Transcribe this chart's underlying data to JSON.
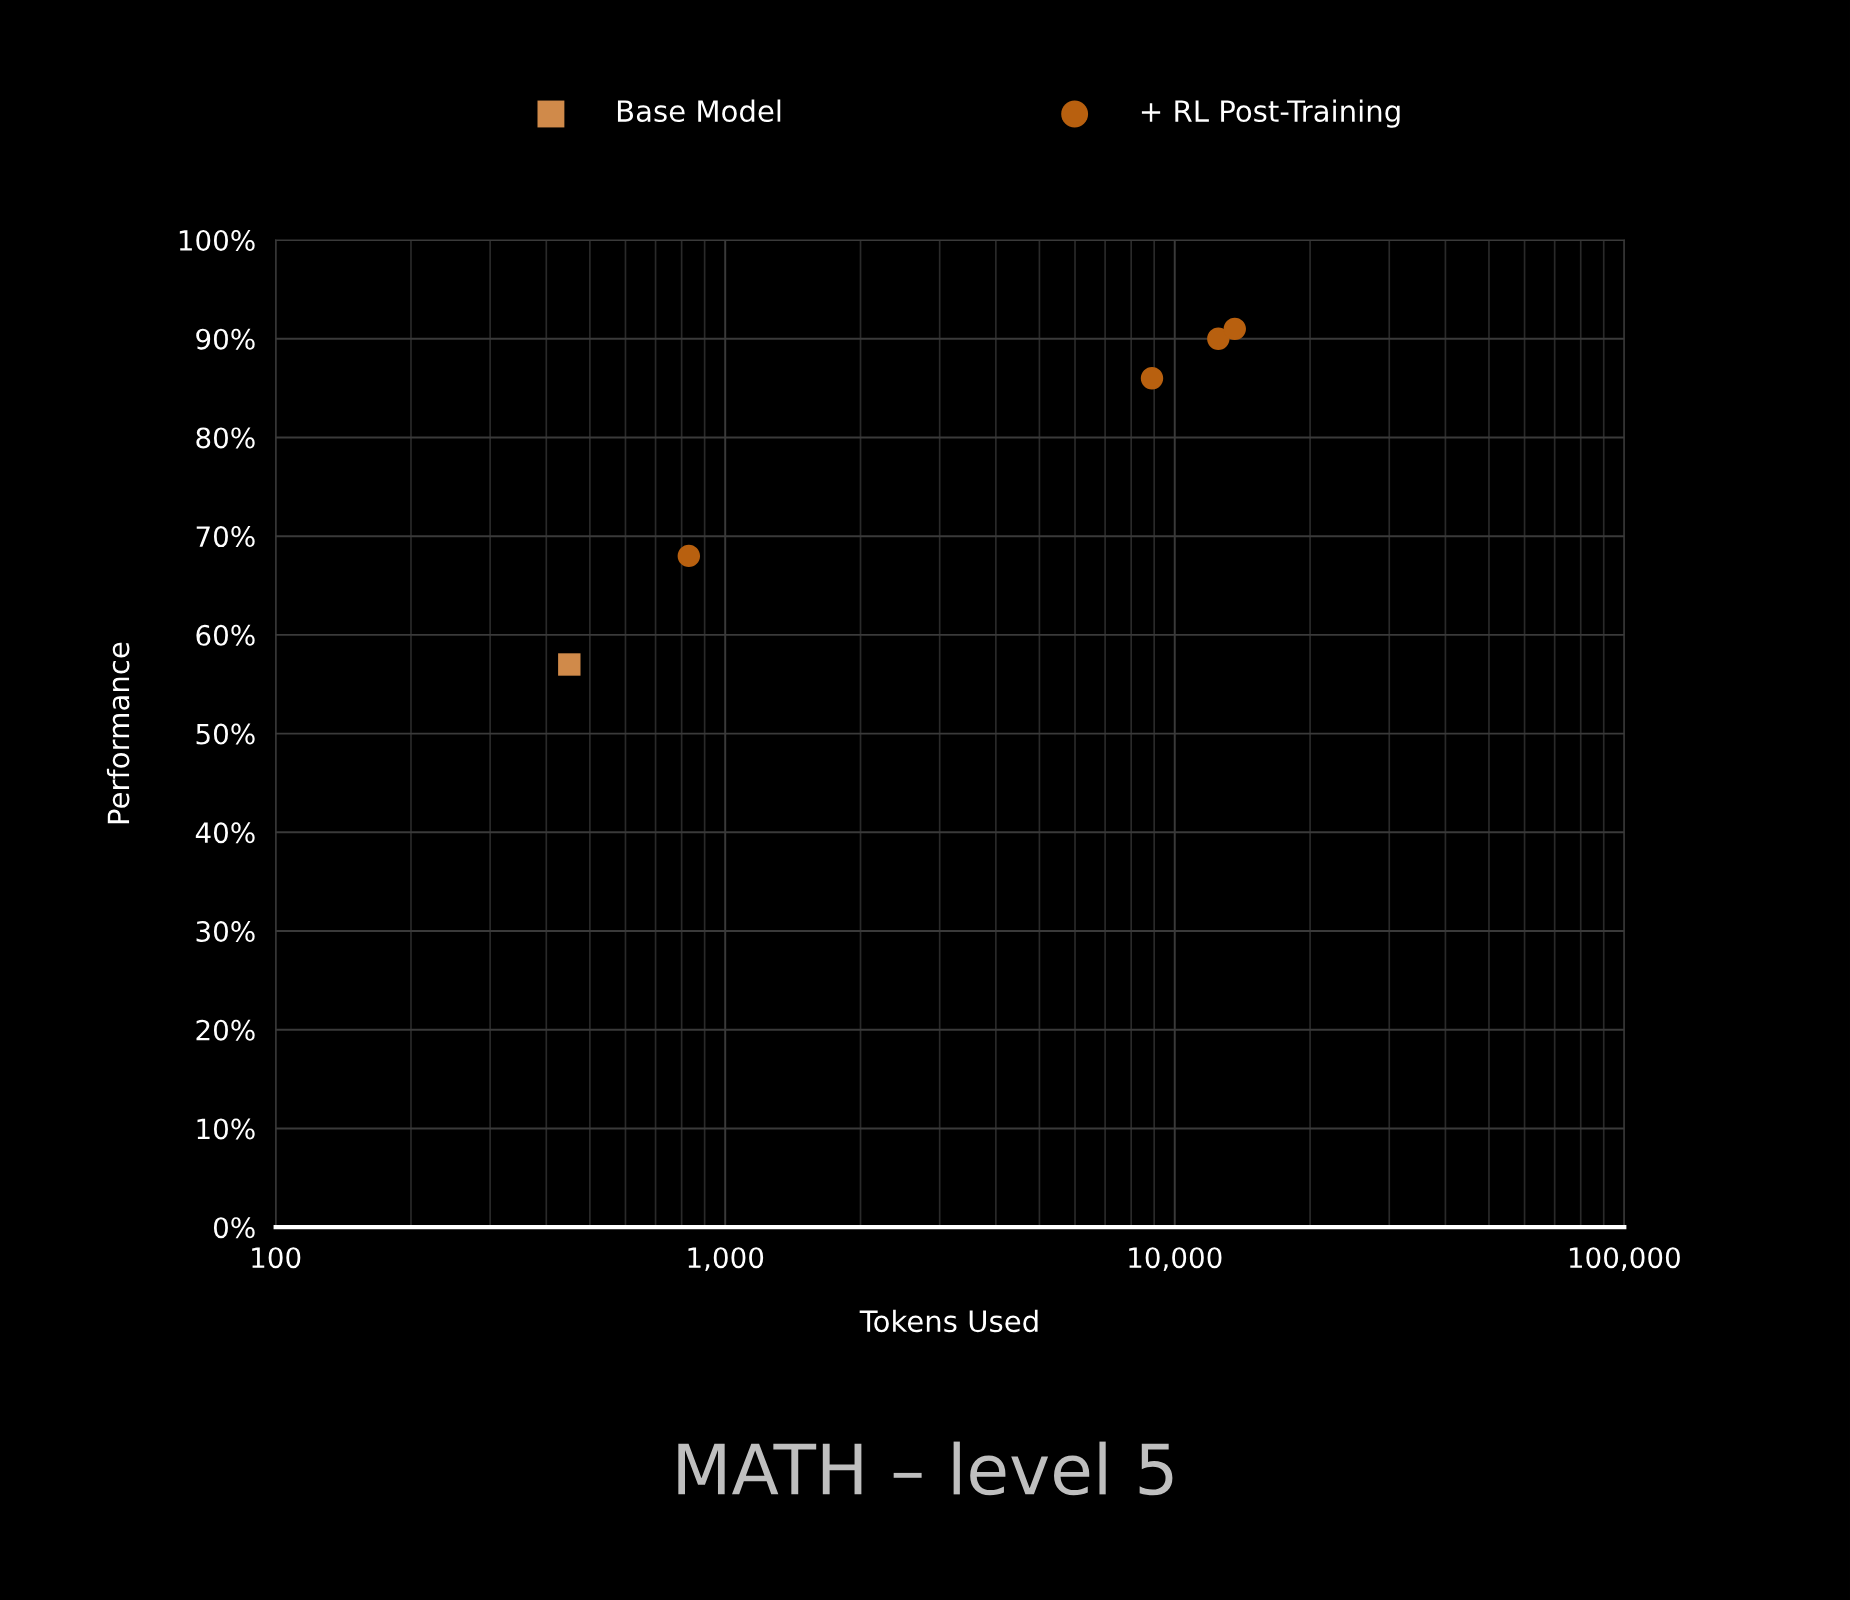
{
  "chart_data": {
    "type": "scatter",
    "title": "MATH – level 5",
    "xlabel": "Tokens Used",
    "ylabel": "Performance",
    "log": "x",
    "xlim": [
      100,
      100000
    ],
    "xticks": [
      100,
      {
        "value": 1000,
        "label": "1,000"
      },
      {
        "value": 10000,
        "label": "10,000"
      },
      {
        "value": 100000,
        "label": "100,000"
      }
    ],
    "ylim": [
      0,
      100
    ],
    "yticks": [
      {
        "value": 0,
        "label": "0%"
      },
      {
        "value": 10,
        "label": "10%"
      },
      {
        "value": 20,
        "label": "20%"
      },
      {
        "value": 30,
        "label": "30%"
      },
      {
        "value": 40,
        "label": "40%"
      },
      {
        "value": 50,
        "label": "50%"
      },
      {
        "value": 60,
        "label": "60%"
      },
      {
        "value": 70,
        "label": "70%"
      },
      {
        "value": 80,
        "label": "80%"
      },
      {
        "value": 90,
        "label": "90%"
      },
      {
        "value": 100,
        "label": "100%"
      }
    ],
    "grid": true,
    "legend": "top",
    "series": [
      {
        "name": "Base Model",
        "color": "#d08a4a",
        "marker": "square",
        "x": [
          450
        ],
        "values": [
          57
        ]
      },
      {
        "name": "+ RL Post-Training",
        "color": "#b8600f",
        "marker": "circle",
        "x": [
          830,
          8900,
          12500,
          13600
        ],
        "values": [
          68,
          86,
          90,
          91
        ]
      }
    ]
  }
}
